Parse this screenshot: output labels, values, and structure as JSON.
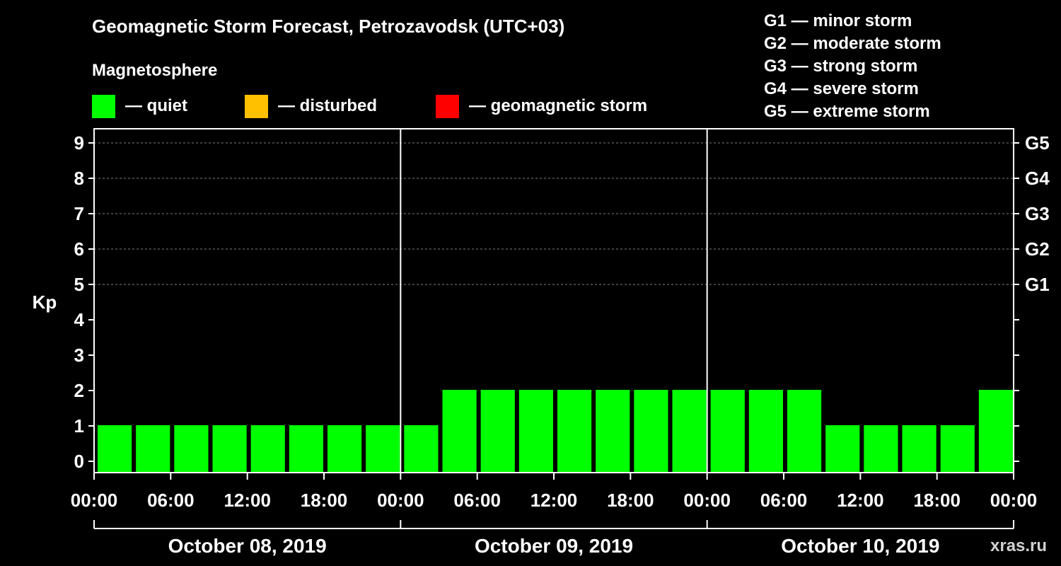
{
  "chart_data": {
    "type": "bar",
    "title": "Geomagnetic Storm Forecast, Petrozavodsk (UTC+03)",
    "ylabel": "Kp",
    "ylim": [
      0,
      9
    ],
    "y_ticks": [
      "0",
      "1",
      "2",
      "3",
      "4",
      "5",
      "6",
      "7",
      "8",
      "9"
    ],
    "right_ticks": [
      {
        "kp": 5,
        "label": "G1"
      },
      {
        "kp": 6,
        "label": "G2"
      },
      {
        "kp": 7,
        "label": "G3"
      },
      {
        "kp": 8,
        "label": "G4"
      },
      {
        "kp": 9,
        "label": "G5"
      }
    ],
    "x_ticks": [
      "00:00",
      "06:00",
      "12:00",
      "18:00",
      "00:00",
      "06:00",
      "12:00",
      "18:00",
      "00:00",
      "06:00",
      "12:00",
      "18:00",
      "00:00"
    ],
    "days": [
      "October 08, 2019",
      "October 09, 2019",
      "October 10, 2019"
    ],
    "interval_hours": 3,
    "values": [
      1,
      1,
      1,
      1,
      1,
      1,
      1,
      1,
      1,
      2,
      2,
      2,
      2,
      2,
      2,
      2,
      2,
      2,
      2,
      1,
      1,
      1,
      1,
      2
    ],
    "grid": "dashed at Kp 5-9",
    "colors": {
      "quiet": "#00ff00",
      "disturbed": "#ffc000",
      "storm": "#ff0000",
      "grid": "#808080",
      "axis": "#ffffff"
    }
  },
  "legend": {
    "heading": "Magnetosphere",
    "items": [
      {
        "label": "— quiet",
        "color": "#00ff00"
      },
      {
        "label": "— disturbed",
        "color": "#ffc000"
      },
      {
        "label": "— geomagnetic storm",
        "color": "#ff0000"
      }
    ]
  },
  "g_scale": [
    "G1 — minor storm",
    "G2 — moderate storm",
    "G3 — strong storm",
    "G4 — severe storm",
    "G5 — extreme storm"
  ],
  "watermark": "xras.ru"
}
